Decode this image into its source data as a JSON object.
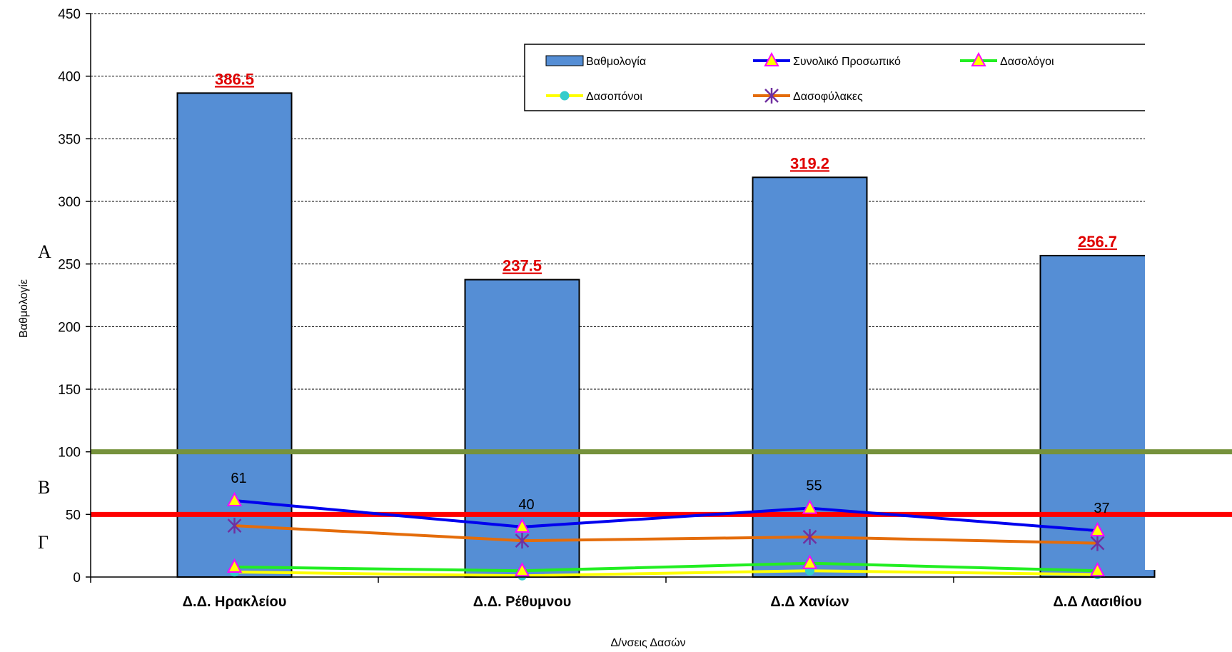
{
  "chart_data": {
    "type": "bar",
    "categories": [
      "Δ.Δ. Ηρακλείου",
      "Δ.Δ. Ρέθυμνου",
      "Δ.Δ Χανίων",
      "Δ.Δ Λασιθίου"
    ],
    "xlabel": "Δ/νσεις Δασών",
    "ylabel": "Βαθμολογίε",
    "ylim": [
      0,
      450
    ],
    "yticks": [
      0,
      50,
      100,
      150,
      200,
      250,
      300,
      350,
      400,
      450
    ],
    "ytick_labels": [
      "0",
      "50",
      "100",
      "150",
      "200",
      "250",
      "300",
      "350",
      "400",
      "450"
    ],
    "grid": true,
    "legend_position": "top-right",
    "series": [
      {
        "name": "Βαθμολογία",
        "kind": "bar",
        "color": "#558ed5",
        "values": [
          386.5,
          237.5,
          319.2,
          256.7
        ],
        "labels": [
          "386.5",
          "237.5",
          "319.2",
          "256.7"
        ]
      },
      {
        "name": "Συνολικό Προσωπικό",
        "kind": "line",
        "color": "#0000ee",
        "marker": "triangle",
        "values": [
          61,
          40,
          55,
          37
        ],
        "labels": [
          "61",
          "40",
          "55",
          "37"
        ]
      },
      {
        "name": "Δασολόγοι",
        "kind": "line",
        "color": "#22ee22",
        "marker": "triangle",
        "values": [
          8,
          5,
          11,
          5
        ]
      },
      {
        "name": "Δασοπόνοι",
        "kind": "line",
        "color": "#ffff00",
        "marker": "circle",
        "values": [
          4,
          1,
          5,
          2
        ]
      },
      {
        "name": "Δασοφύλακες",
        "kind": "line",
        "color": "#e46c0a",
        "marker": "star",
        "values": [
          41,
          29,
          32,
          27
        ]
      }
    ],
    "threshold_lines": [
      {
        "value": 100,
        "color": "#76923c"
      },
      {
        "value": 50,
        "color": "#ff0000"
      }
    ],
    "region_labels": [
      {
        "text": "A",
        "value": 260
      },
      {
        "text": "B",
        "value": 72
      },
      {
        "text": "Γ",
        "value": 28
      }
    ]
  }
}
